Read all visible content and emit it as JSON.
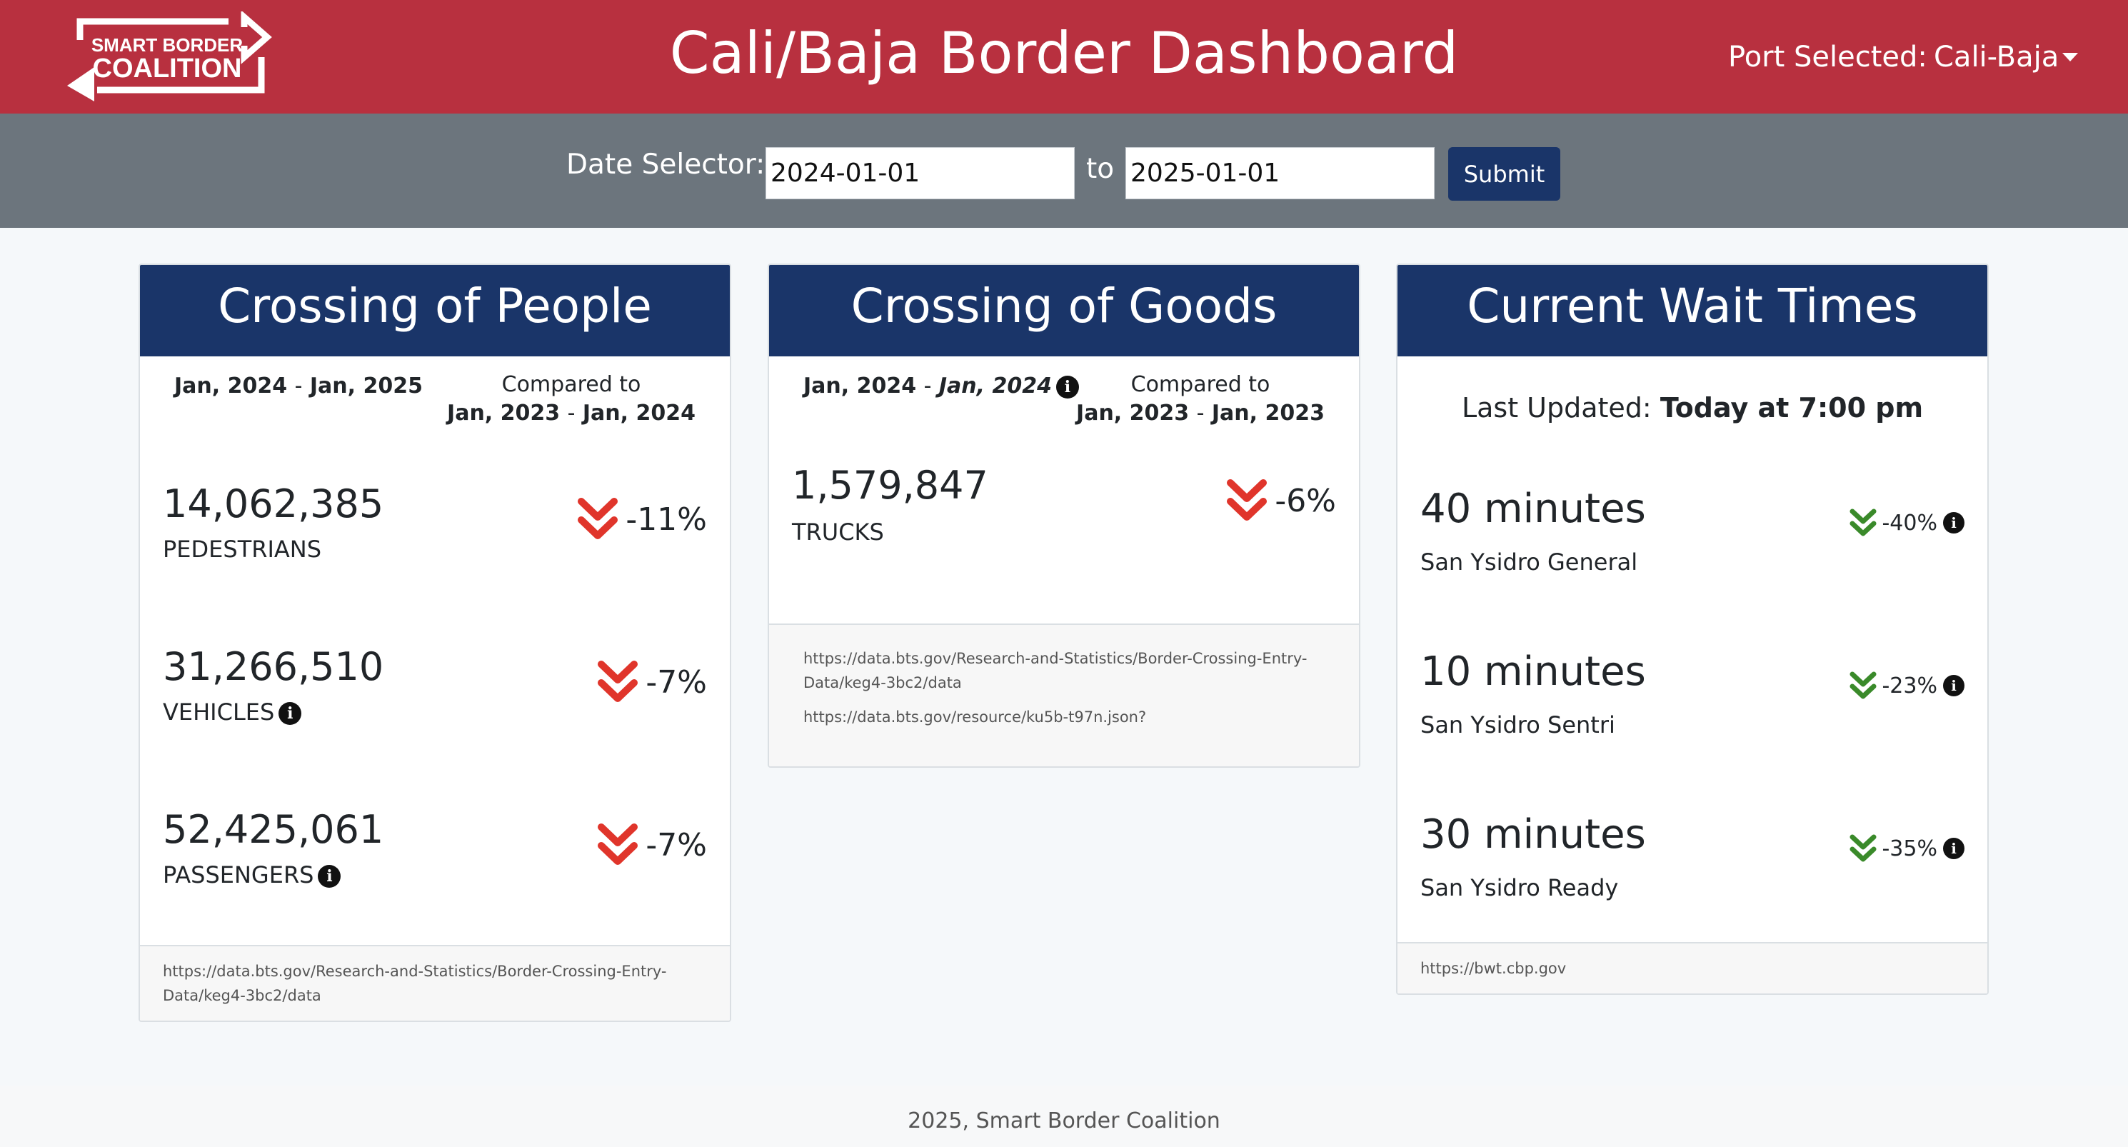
{
  "header": {
    "logo_line1": "SMART BORDER",
    "logo_line2": "COALITION",
    "title": "Cali/Baja Border Dashboard",
    "port_label": "Port Selected:",
    "port_value": "Cali-Baja",
    "brand_color": "#b8303f",
    "navy_color": "#1a3569"
  },
  "date_selector": {
    "label": "Date Selector:",
    "from": "2024-01-01",
    "to_label": "to",
    "to": "2025-01-01",
    "submit_label": "Submit"
  },
  "people": {
    "title": "Crossing of People",
    "period_start": "Jan, 2024",
    "period_sep": "-",
    "period_end": "Jan, 2025",
    "compared_label": "Compared to",
    "compared_start": "Jan, 2023",
    "compared_sep": "-",
    "compared_end": "Jan, 2024",
    "stats": [
      {
        "value": "14,062,385",
        "label": "PEDESTRIANS",
        "change": "-11%"
      },
      {
        "value": "31,266,510",
        "label": "VEHICLES",
        "change": "-7%"
      },
      {
        "value": "52,425,061",
        "label": "PASSENGERS",
        "change": "-7%"
      }
    ],
    "source": "https://data.bts.gov/Research-and-Statistics/Border-Crossing-Entry-Data/keg4-3bc2/data"
  },
  "goods": {
    "title": "Crossing of Goods",
    "period_start": "Jan, 2024",
    "period_sep": "-",
    "period_end": "Jan, 2024",
    "compared_label": "Compared to",
    "compared_start": "Jan, 2023",
    "compared_sep": "-",
    "compared_end": "Jan, 2023",
    "stats": [
      {
        "value": "1,579,847",
        "label": "TRUCKS",
        "change": "-6%"
      }
    ],
    "source1": "https://data.bts.gov/Research-and-Statistics/Border-Crossing-Entry-Data/keg4-3bc2/data",
    "source2": "https://data.bts.gov/resource/ku5b-t97n.json?"
  },
  "wait_times": {
    "title": "Current Wait Times",
    "updated_label": "Last Updated:",
    "updated_value": "Today at 7:00 pm",
    "items": [
      {
        "value": "40 minutes",
        "label": "San Ysidro General",
        "change": "-40%"
      },
      {
        "value": "10 minutes",
        "label": "San Ysidro Sentri",
        "change": "-23%"
      },
      {
        "value": "30 minutes",
        "label": "San Ysidro Ready",
        "change": "-35%"
      }
    ],
    "source": "https://bwt.cbp.gov"
  },
  "icons": {
    "decrease": "double-chevron-down-icon",
    "info": "info-icon",
    "info_glyph": "i",
    "down_color": "#e0352b",
    "good_color": "#3a8a2a"
  },
  "footer": {
    "text": "2025, Smart Border Coalition"
  }
}
